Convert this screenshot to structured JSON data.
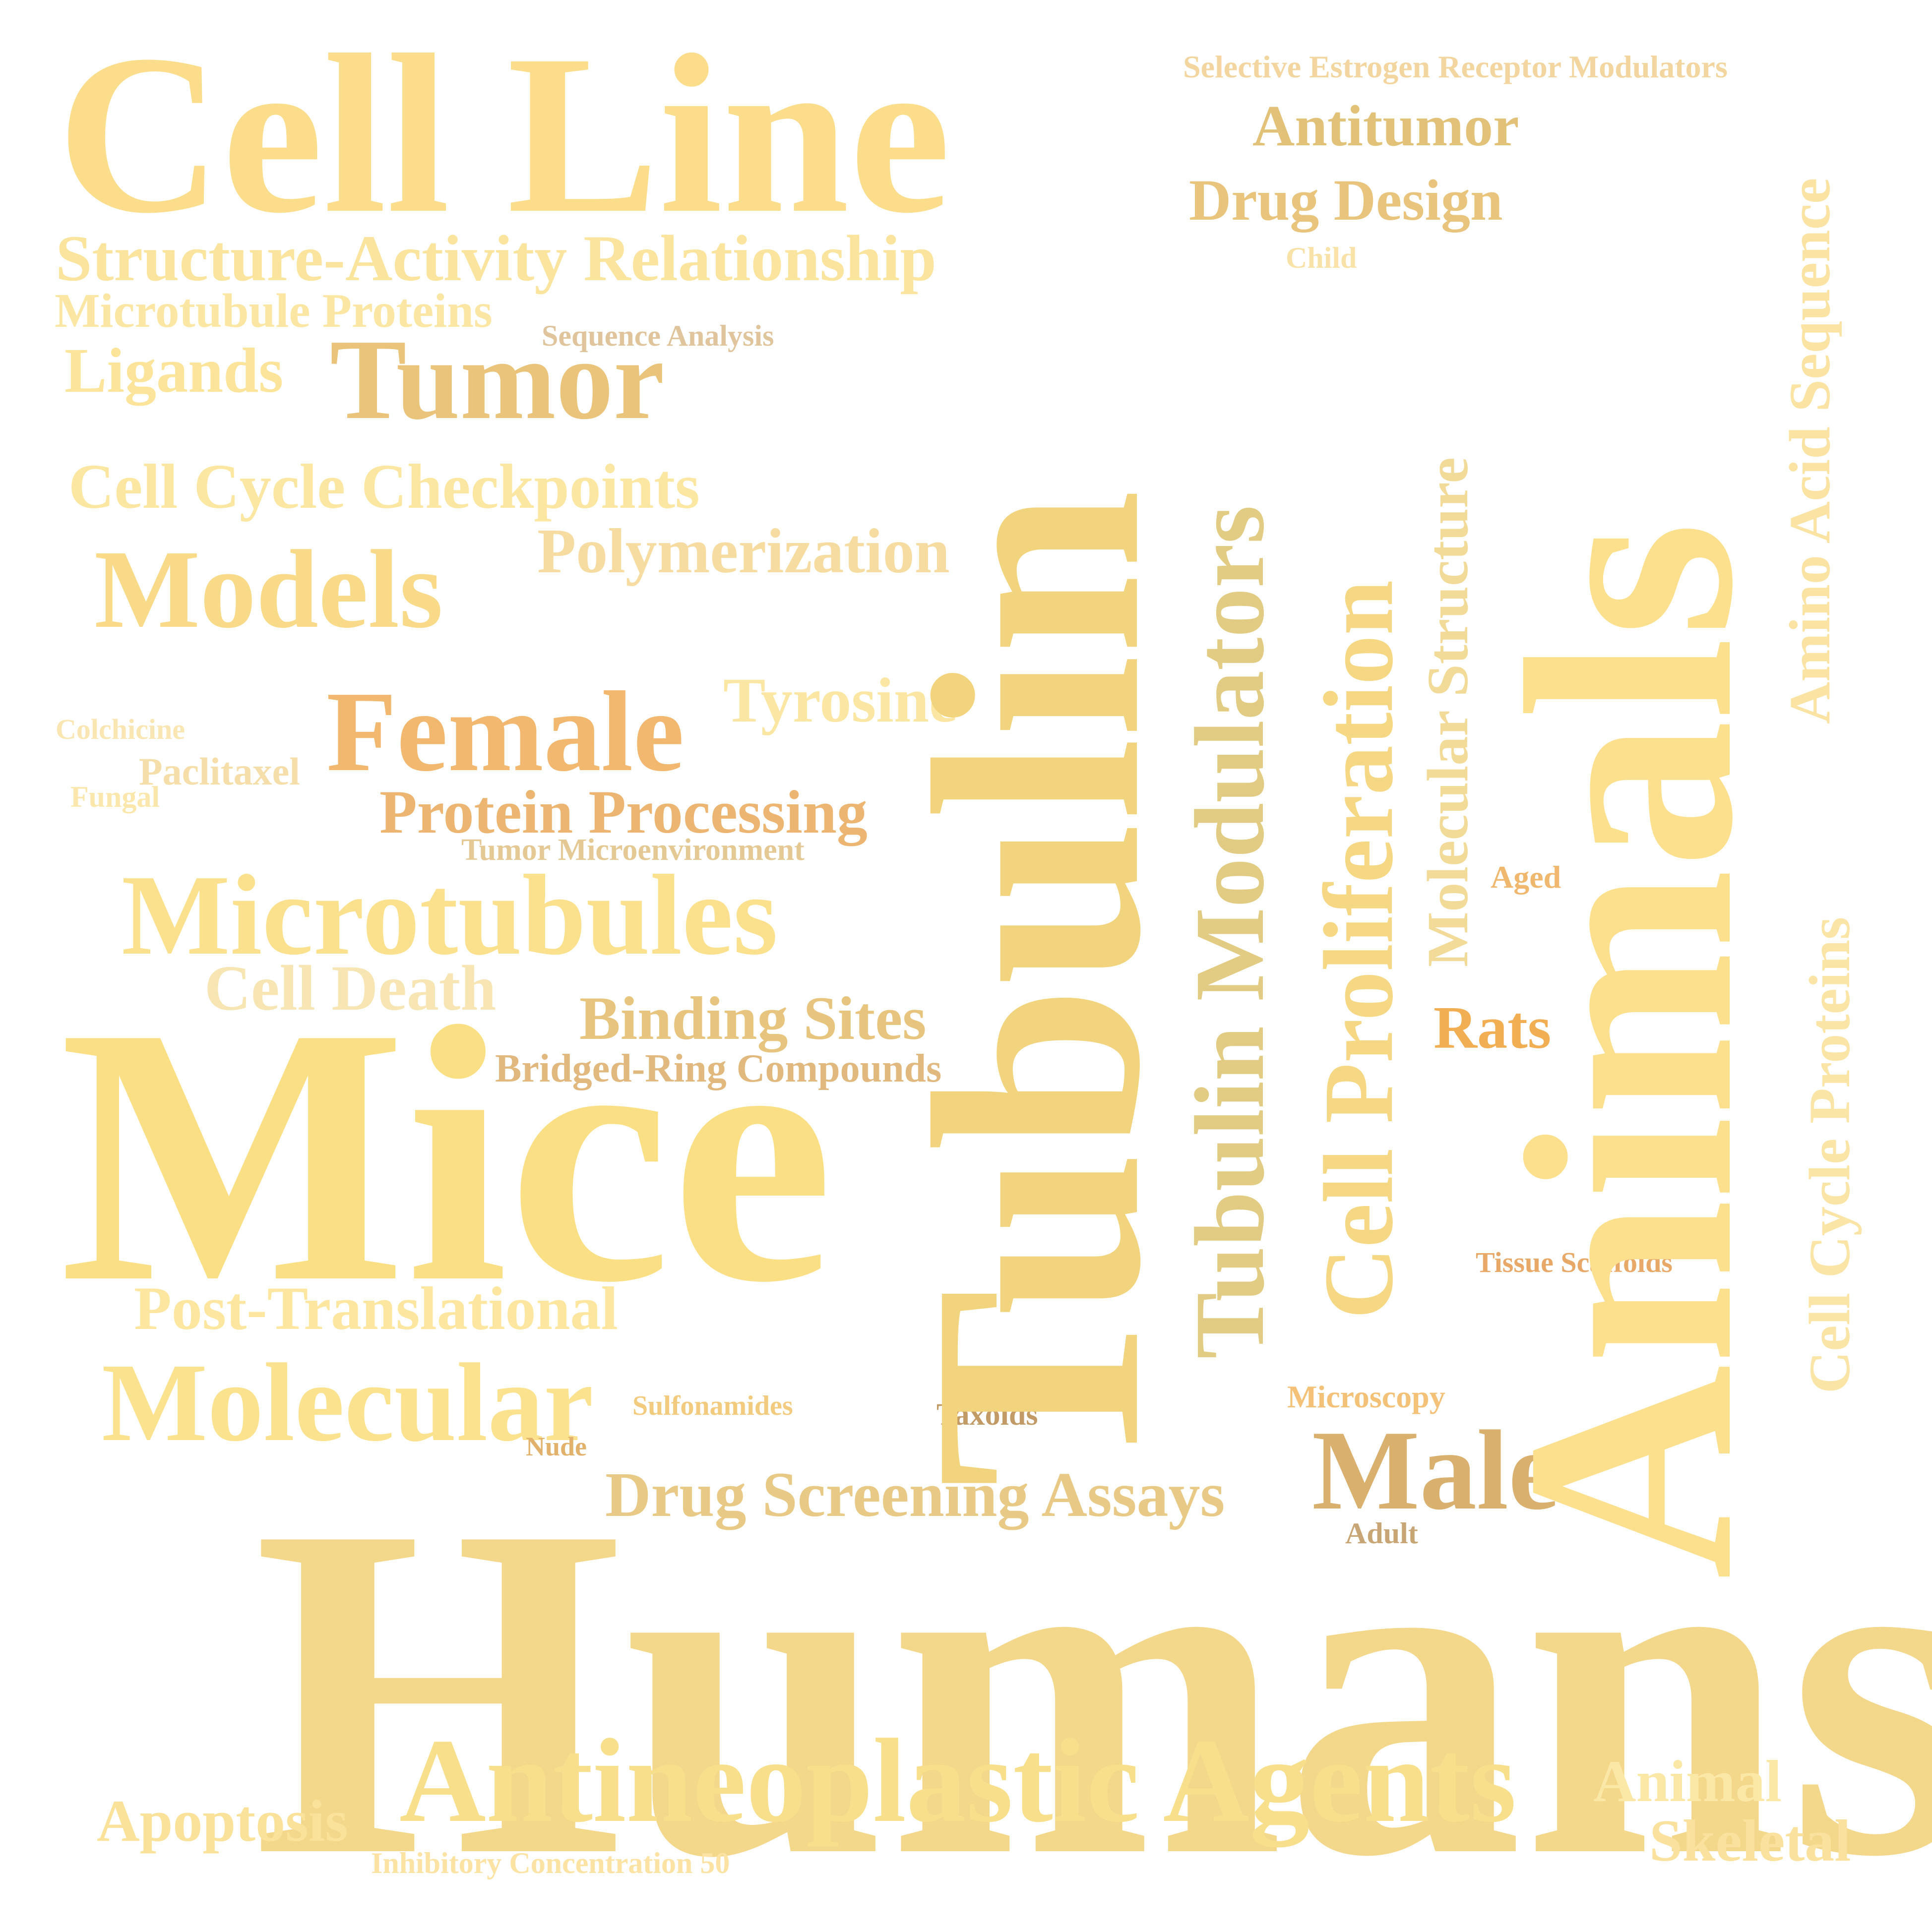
{
  "words": [
    {
      "id": "humans",
      "text": "Humans",
      "color": "#F3D78A"
    },
    {
      "id": "tubulin",
      "text": "Tubulin",
      "color": "#F3D47E"
    },
    {
      "id": "animals",
      "text": "Animals",
      "color": "#FCE08E"
    },
    {
      "id": "mice",
      "text": "Mice",
      "color": "#FADF85"
    },
    {
      "id": "cell-line",
      "text": "Cell Line",
      "color": "#FBDD8B"
    },
    {
      "id": "tubulin-modulators",
      "text": "Tubulin Modulators",
      "color": "#E2CB82"
    },
    {
      "id": "cell-proliferation",
      "text": "Cell Proliferation",
      "color": "#F6D884"
    },
    {
      "id": "molecular-structure",
      "text": "Molecular Structure",
      "color": "#F2DA98"
    },
    {
      "id": "amino-acid-sequence",
      "text": "Amino Acid Sequence",
      "color": "#FAE3A3"
    },
    {
      "id": "cell-cycle-proteins",
      "text": "Cell Cycle Proteins",
      "color": "#FBE5A6"
    },
    {
      "id": "antineoplastic-agents",
      "text": "Antineoplastic Agents",
      "color": "#F7DF8B"
    },
    {
      "id": "microtubules",
      "text": "Microtubules",
      "color": "#FBE18D"
    },
    {
      "id": "tumor",
      "text": "Tumor",
      "color": "#E9C47A"
    },
    {
      "id": "female",
      "text": "Female",
      "color": "#F2B870"
    },
    {
      "id": "male",
      "text": "Male",
      "color": "#D9B06E"
    },
    {
      "id": "models",
      "text": "Models",
      "color": "#F8DA88"
    },
    {
      "id": "molecular",
      "text": "Molecular",
      "color": "#FBE28E"
    },
    {
      "id": "structure-activity-relationship",
      "text": "Structure-Activity Relationship",
      "color": "#FAE49E"
    },
    {
      "id": "microtubule-proteins",
      "text": "Microtubule Proteins",
      "color": "#FBE6A3"
    },
    {
      "id": "ligands",
      "text": "Ligands",
      "color": "#FCE59A"
    },
    {
      "id": "cell-cycle-checkpoints",
      "text": "Cell Cycle Checkpoints",
      "color": "#FCE7A2"
    },
    {
      "id": "polymerization",
      "text": "Polymerization",
      "color": "#F7DCA2"
    },
    {
      "id": "tyrosine",
      "text": "Tyrosine",
      "color": "#FBE7A3"
    },
    {
      "id": "protein-processing",
      "text": "Protein Processing",
      "color": "#EDB572"
    },
    {
      "id": "cell-death",
      "text": "Cell Death",
      "color": "#F7E5B4"
    },
    {
      "id": "binding-sites",
      "text": "Binding Sites",
      "color": "#E8C57E"
    },
    {
      "id": "bridged-ring-compounds",
      "text": "Bridged-Ring Compounds",
      "color": "#E1B97F"
    },
    {
      "id": "post-translational",
      "text": "Post-Translational",
      "color": "#FDE7A0"
    },
    {
      "id": "drug-screening-assays",
      "text": "Drug Screening Assays",
      "color": "#E8C985"
    },
    {
      "id": "apoptosis",
      "text": "Apoptosis",
      "color": "#FBE29A"
    },
    {
      "id": "animal",
      "text": "Animal",
      "color": "#FBE7A6"
    },
    {
      "id": "skeletal",
      "text": "Skeletal",
      "color": "#FAE29E"
    },
    {
      "id": "antitumor",
      "text": "Antitumor",
      "color": "#E2C278"
    },
    {
      "id": "drug-design",
      "text": "Drug Design",
      "color": "#E9C47C"
    },
    {
      "id": "selective-estrogen-receptor-modulators",
      "text": "Selective Estrogen Receptor Modulators",
      "color": "#F3D69F"
    },
    {
      "id": "child",
      "text": "Child",
      "color": "#F8E2A8"
    },
    {
      "id": "sequence-analysis",
      "text": "Sequence Analysis",
      "color": "#DFC49C"
    },
    {
      "id": "colchicine",
      "text": "Colchicine",
      "color": "#FAE6B2"
    },
    {
      "id": "paclitaxel",
      "text": "Paclitaxel",
      "color": "#F6DEAA"
    },
    {
      "id": "fungal",
      "text": "Fungal",
      "color": "#FBE7AC"
    },
    {
      "id": "tumor-microenvironment",
      "text": "Tumor Microenvironment",
      "color": "#E5C995"
    },
    {
      "id": "rats",
      "text": "Rats",
      "color": "#F1AE53"
    },
    {
      "id": "aged",
      "text": "Aged",
      "color": "#F0B86E"
    },
    {
      "id": "tissue-scaffolds",
      "text": "Tissue Scaffolds",
      "color": "#E8A968"
    },
    {
      "id": "microscopy",
      "text": "Microscopy",
      "color": "#F3C278"
    },
    {
      "id": "sulfonamides",
      "text": "Sulfonamides",
      "color": "#F2CB7E"
    },
    {
      "id": "taxoids",
      "text": "Taxoids",
      "color": "#C29A66"
    },
    {
      "id": "nude",
      "text": "Nude",
      "color": "#E2B26C"
    },
    {
      "id": "adult",
      "text": "Adult",
      "color": "#C8A574"
    },
    {
      "id": "inhibitory-concentration-50",
      "text": "Inhibitory Concentration 50",
      "color": "#FCE2A3"
    }
  ]
}
